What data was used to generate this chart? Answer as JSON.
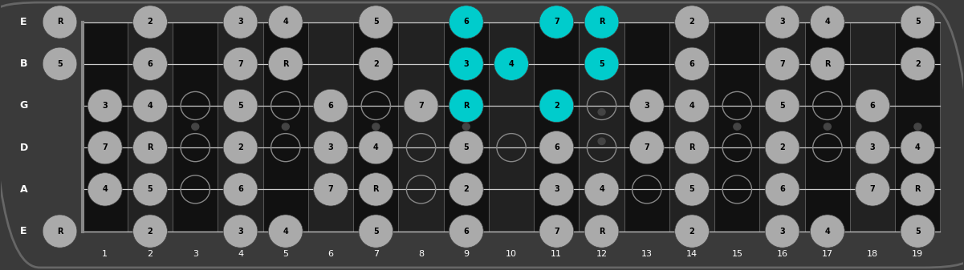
{
  "frets": 19,
  "string_labels": [
    "E",
    "B",
    "G",
    "D",
    "A",
    "E"
  ],
  "fret_numbers": [
    1,
    2,
    3,
    4,
    5,
    6,
    7,
    8,
    9,
    10,
    11,
    12,
    13,
    14,
    15,
    16,
    17,
    18,
    19
  ],
  "bg_color": "#3a3a3a",
  "fretboard_dark": "#111111",
  "fretboard_light": "#222222",
  "string_color": "#cccccc",
  "fret_color": "#555555",
  "note_color_gray": "#aaaaaa",
  "note_color_cyan": "#00cccc",
  "note_text_color": "#000000",
  "notes": [
    {
      "string": 0,
      "fret": 0,
      "label": "R",
      "highlight": false
    },
    {
      "string": 0,
      "fret": 2,
      "label": "2",
      "highlight": false
    },
    {
      "string": 0,
      "fret": 4,
      "label": "3",
      "highlight": false
    },
    {
      "string": 0,
      "fret": 5,
      "label": "4",
      "highlight": false
    },
    {
      "string": 0,
      "fret": 7,
      "label": "5",
      "highlight": false
    },
    {
      "string": 0,
      "fret": 9,
      "label": "6",
      "highlight": true
    },
    {
      "string": 0,
      "fret": 11,
      "label": "7",
      "highlight": true
    },
    {
      "string": 0,
      "fret": 12,
      "label": "R",
      "highlight": true
    },
    {
      "string": 0,
      "fret": 14,
      "label": "2",
      "highlight": false
    },
    {
      "string": 0,
      "fret": 16,
      "label": "3",
      "highlight": false
    },
    {
      "string": 0,
      "fret": 17,
      "label": "4",
      "highlight": false
    },
    {
      "string": 0,
      "fret": 19,
      "label": "5",
      "highlight": false
    },
    {
      "string": 1,
      "fret": 0,
      "label": "5",
      "highlight": false
    },
    {
      "string": 1,
      "fret": 2,
      "label": "6",
      "highlight": false
    },
    {
      "string": 1,
      "fret": 4,
      "label": "7",
      "highlight": false
    },
    {
      "string": 1,
      "fret": 5,
      "label": "R",
      "highlight": false
    },
    {
      "string": 1,
      "fret": 7,
      "label": "2",
      "highlight": false
    },
    {
      "string": 1,
      "fret": 9,
      "label": "3",
      "highlight": true
    },
    {
      "string": 1,
      "fret": 10,
      "label": "4",
      "highlight": true
    },
    {
      "string": 1,
      "fret": 12,
      "label": "5",
      "highlight": true
    },
    {
      "string": 1,
      "fret": 14,
      "label": "6",
      "highlight": false
    },
    {
      "string": 1,
      "fret": 16,
      "label": "7",
      "highlight": false
    },
    {
      "string": 1,
      "fret": 17,
      "label": "R",
      "highlight": false
    },
    {
      "string": 1,
      "fret": 19,
      "label": "2",
      "highlight": false
    },
    {
      "string": 2,
      "fret": 1,
      "label": "3",
      "highlight": false
    },
    {
      "string": 2,
      "fret": 2,
      "label": "4",
      "highlight": false
    },
    {
      "string": 2,
      "fret": 4,
      "label": "5",
      "highlight": false
    },
    {
      "string": 2,
      "fret": 6,
      "label": "6",
      "highlight": false
    },
    {
      "string": 2,
      "fret": 8,
      "label": "7",
      "highlight": false
    },
    {
      "string": 2,
      "fret": 9,
      "label": "R",
      "highlight": true
    },
    {
      "string": 2,
      "fret": 11,
      "label": "2",
      "highlight": true
    },
    {
      "string": 2,
      "fret": 13,
      "label": "3",
      "highlight": false
    },
    {
      "string": 2,
      "fret": 14,
      "label": "4",
      "highlight": false
    },
    {
      "string": 2,
      "fret": 16,
      "label": "5",
      "highlight": false
    },
    {
      "string": 2,
      "fret": 18,
      "label": "6",
      "highlight": false
    },
    {
      "string": 3,
      "fret": 1,
      "label": "7",
      "highlight": false
    },
    {
      "string": 3,
      "fret": 2,
      "label": "R",
      "highlight": false
    },
    {
      "string": 3,
      "fret": 4,
      "label": "2",
      "highlight": false
    },
    {
      "string": 3,
      "fret": 6,
      "label": "3",
      "highlight": false
    },
    {
      "string": 3,
      "fret": 7,
      "label": "4",
      "highlight": false
    },
    {
      "string": 3,
      "fret": 9,
      "label": "5",
      "highlight": false
    },
    {
      "string": 3,
      "fret": 11,
      "label": "6",
      "highlight": false
    },
    {
      "string": 3,
      "fret": 13,
      "label": "7",
      "highlight": false
    },
    {
      "string": 3,
      "fret": 14,
      "label": "R",
      "highlight": false
    },
    {
      "string": 3,
      "fret": 16,
      "label": "2",
      "highlight": false
    },
    {
      "string": 3,
      "fret": 18,
      "label": "3",
      "highlight": false
    },
    {
      "string": 3,
      "fret": 19,
      "label": "4",
      "highlight": false
    },
    {
      "string": 4,
      "fret": 1,
      "label": "4",
      "highlight": false
    },
    {
      "string": 4,
      "fret": 2,
      "label": "5",
      "highlight": false
    },
    {
      "string": 4,
      "fret": 4,
      "label": "6",
      "highlight": false
    },
    {
      "string": 4,
      "fret": 6,
      "label": "7",
      "highlight": false
    },
    {
      "string": 4,
      "fret": 7,
      "label": "R",
      "highlight": false
    },
    {
      "string": 4,
      "fret": 9,
      "label": "2",
      "highlight": false
    },
    {
      "string": 4,
      "fret": 11,
      "label": "3",
      "highlight": false
    },
    {
      "string": 4,
      "fret": 12,
      "label": "4",
      "highlight": false
    },
    {
      "string": 4,
      "fret": 14,
      "label": "5",
      "highlight": false
    },
    {
      "string": 4,
      "fret": 16,
      "label": "6",
      "highlight": false
    },
    {
      "string": 4,
      "fret": 18,
      "label": "7",
      "highlight": false
    },
    {
      "string": 4,
      "fret": 19,
      "label": "R",
      "highlight": false
    },
    {
      "string": 5,
      "fret": 0,
      "label": "R",
      "highlight": false
    },
    {
      "string": 5,
      "fret": 2,
      "label": "2",
      "highlight": false
    },
    {
      "string": 5,
      "fret": 4,
      "label": "3",
      "highlight": false
    },
    {
      "string": 5,
      "fret": 5,
      "label": "4",
      "highlight": false
    },
    {
      "string": 5,
      "fret": 7,
      "label": "5",
      "highlight": false
    },
    {
      "string": 5,
      "fret": 9,
      "label": "6",
      "highlight": false
    },
    {
      "string": 5,
      "fret": 11,
      "label": "7",
      "highlight": false
    },
    {
      "string": 5,
      "fret": 12,
      "label": "R",
      "highlight": false
    },
    {
      "string": 5,
      "fret": 14,
      "label": "2",
      "highlight": false
    },
    {
      "string": 5,
      "fret": 16,
      "label": "3",
      "highlight": false
    },
    {
      "string": 5,
      "fret": 17,
      "label": "4",
      "highlight": false
    },
    {
      "string": 5,
      "fret": 19,
      "label": "5",
      "highlight": false
    }
  ],
  "open_circles": [
    [
      2,
      3
    ],
    [
      2,
      5
    ],
    [
      2,
      7
    ],
    [
      2,
      12
    ],
    [
      2,
      15
    ],
    [
      2,
      17
    ],
    [
      3,
      3
    ],
    [
      3,
      5
    ],
    [
      3,
      8
    ],
    [
      3,
      10
    ],
    [
      3,
      12
    ],
    [
      3,
      15
    ],
    [
      3,
      17
    ],
    [
      4,
      3
    ],
    [
      4,
      8
    ],
    [
      4,
      13
    ],
    [
      4,
      15
    ]
  ]
}
